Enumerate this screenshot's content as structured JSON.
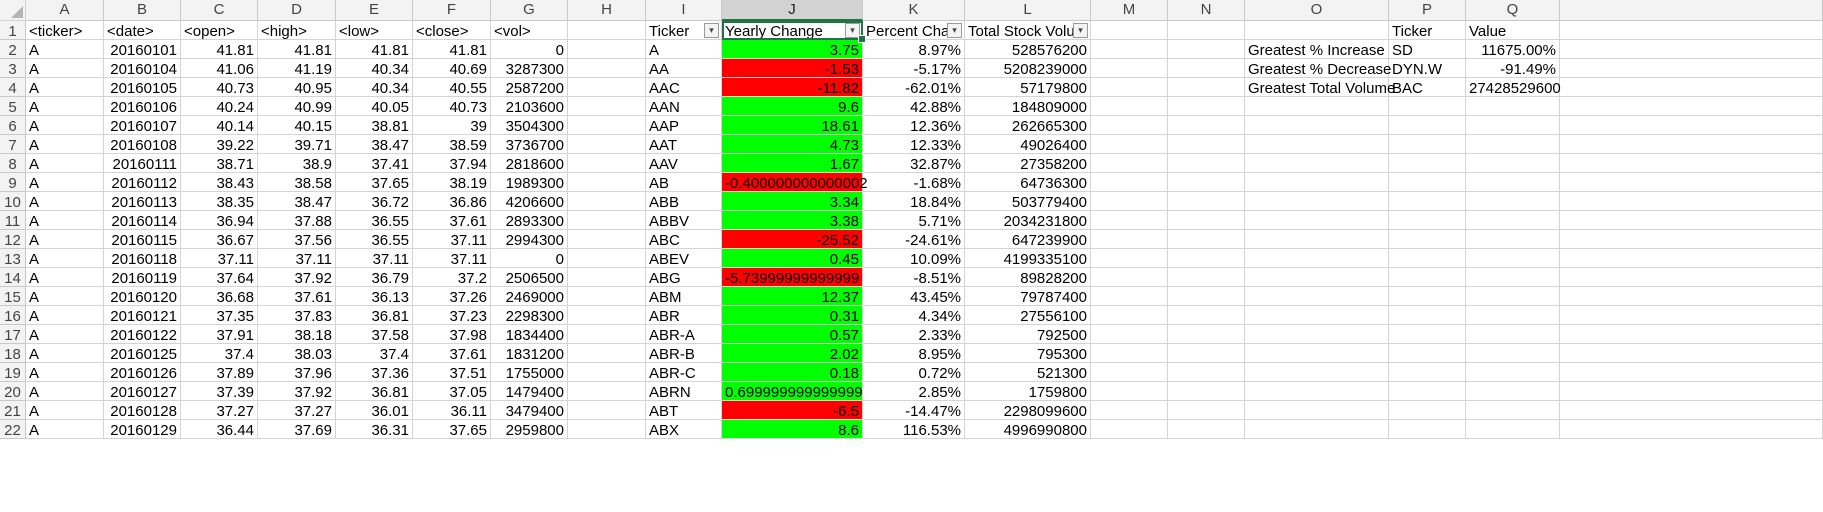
{
  "sheet": {
    "column_letters": [
      "A",
      "B",
      "C",
      "D",
      "E",
      "F",
      "G",
      "H",
      "I",
      "J",
      "K",
      "L",
      "M",
      "N",
      "O",
      "P",
      "Q"
    ],
    "selected_column": "J",
    "row_numbers": [
      "1",
      "2",
      "3",
      "4",
      "5",
      "6",
      "7",
      "8",
      "9",
      "10",
      "11",
      "12",
      "13",
      "14",
      "15",
      "16",
      "17",
      "18",
      "19",
      "20",
      "21",
      "22"
    ],
    "raw_headers": [
      "<ticker>",
      "<date>",
      "<open>",
      "<high>",
      "<low>",
      "<close>",
      "<vol>"
    ],
    "raw_rows": [
      [
        "A",
        "20160101",
        "41.81",
        "41.81",
        "41.81",
        "41.81",
        "0"
      ],
      [
        "A",
        "20160104",
        "41.06",
        "41.19",
        "40.34",
        "40.69",
        "3287300"
      ],
      [
        "A",
        "20160105",
        "40.73",
        "40.95",
        "40.34",
        "40.55",
        "2587200"
      ],
      [
        "A",
        "20160106",
        "40.24",
        "40.99",
        "40.05",
        "40.73",
        "2103600"
      ],
      [
        "A",
        "20160107",
        "40.14",
        "40.15",
        "38.81",
        "39",
        "3504300"
      ],
      [
        "A",
        "20160108",
        "39.22",
        "39.71",
        "38.47",
        "38.59",
        "3736700"
      ],
      [
        "A",
        "20160111",
        "38.71",
        "38.9",
        "37.41",
        "37.94",
        "2818600"
      ],
      [
        "A",
        "20160112",
        "38.43",
        "38.58",
        "37.65",
        "38.19",
        "1989300"
      ],
      [
        "A",
        "20160113",
        "38.35",
        "38.47",
        "36.72",
        "36.86",
        "4206600"
      ],
      [
        "A",
        "20160114",
        "36.94",
        "37.88",
        "36.55",
        "37.61",
        "2893300"
      ],
      [
        "A",
        "20160115",
        "36.67",
        "37.56",
        "36.55",
        "37.11",
        "2994300"
      ],
      [
        "A",
        "20160118",
        "37.11",
        "37.11",
        "37.11",
        "37.11",
        "0"
      ],
      [
        "A",
        "20160119",
        "37.64",
        "37.92",
        "36.79",
        "37.2",
        "2506500"
      ],
      [
        "A",
        "20160120",
        "36.68",
        "37.61",
        "36.13",
        "37.26",
        "2469000"
      ],
      [
        "A",
        "20160121",
        "37.35",
        "37.83",
        "36.81",
        "37.23",
        "2298300"
      ],
      [
        "A",
        "20160122",
        "37.91",
        "38.18",
        "37.58",
        "37.98",
        "1834400"
      ],
      [
        "A",
        "20160125",
        "37.4",
        "38.03",
        "37.4",
        "37.61",
        "1831200"
      ],
      [
        "A",
        "20160126",
        "37.89",
        "37.96",
        "37.36",
        "37.51",
        "1755000"
      ],
      [
        "A",
        "20160127",
        "37.39",
        "37.92",
        "36.81",
        "37.05",
        "1479400"
      ],
      [
        "A",
        "20160128",
        "37.27",
        "37.27",
        "36.01",
        "36.11",
        "3479400"
      ],
      [
        "A",
        "20160129",
        "36.44",
        "37.69",
        "36.31",
        "37.65",
        "2959800"
      ]
    ],
    "summary_headers": [
      "Ticker",
      "Yearly Change",
      "Percent Chan",
      "Total Stock Volur"
    ],
    "summary_rows": [
      [
        "A",
        "3.75",
        "8.97%",
        "528576200"
      ],
      [
        "AA",
        "-1.53",
        "-5.17%",
        "5208239000"
      ],
      [
        "AAC",
        "-11.82",
        "-62.01%",
        "57179800"
      ],
      [
        "AAN",
        "9.6",
        "42.88%",
        "184809000"
      ],
      [
        "AAP",
        "18.61",
        "12.36%",
        "262665300"
      ],
      [
        "AAT",
        "4.73",
        "12.33%",
        "49026400"
      ],
      [
        "AAV",
        "1.67",
        "32.87%",
        "27358200"
      ],
      [
        "AB",
        "-0.400000000000002",
        "-1.68%",
        "64736300"
      ],
      [
        "ABB",
        "3.34",
        "18.84%",
        "503779400"
      ],
      [
        "ABBV",
        "3.38",
        "5.71%",
        "2034231800"
      ],
      [
        "ABC",
        "-25.52",
        "-24.61%",
        "647239900"
      ],
      [
        "ABEV",
        "0.45",
        "10.09%",
        "4199335100"
      ],
      [
        "ABG",
        "-5.73999999999999",
        "-8.51%",
        "89828200"
      ],
      [
        "ABM",
        "12.37",
        "43.45%",
        "79787400"
      ],
      [
        "ABR",
        "0.31",
        "4.34%",
        "27556100"
      ],
      [
        "ABR-A",
        "0.57",
        "2.33%",
        "792500"
      ],
      [
        "ABR-B",
        "2.02",
        "8.95%",
        "795300"
      ],
      [
        "ABR-C",
        "0.18",
        "0.72%",
        "521300"
      ],
      [
        "ABRN",
        "0.699999999999999",
        "2.85%",
        "1759800"
      ],
      [
        "ABT",
        "-6.5",
        "-14.47%",
        "2298099600"
      ],
      [
        "ABX",
        "8.6",
        "116.53%",
        "4996990800"
      ]
    ],
    "greatest": {
      "headers": [
        "Ticker",
        "Value"
      ],
      "rows": [
        [
          "Greatest % Increase",
          "SD",
          "11675.00%"
        ],
        [
          "Greatest % Decrease",
          "DYN.W",
          "-91.49%"
        ],
        [
          "Greatest Total Volume",
          "BAC",
          "27428529600"
        ]
      ]
    },
    "colors": {
      "positive_fill": "#00ff00",
      "negative_fill": "#ff0000",
      "selection": "#217346",
      "header_bg": "#f3f3f3"
    },
    "icons": {
      "filter": "filter-dropdown-icon",
      "corner": "select-all-triangle-icon"
    }
  }
}
